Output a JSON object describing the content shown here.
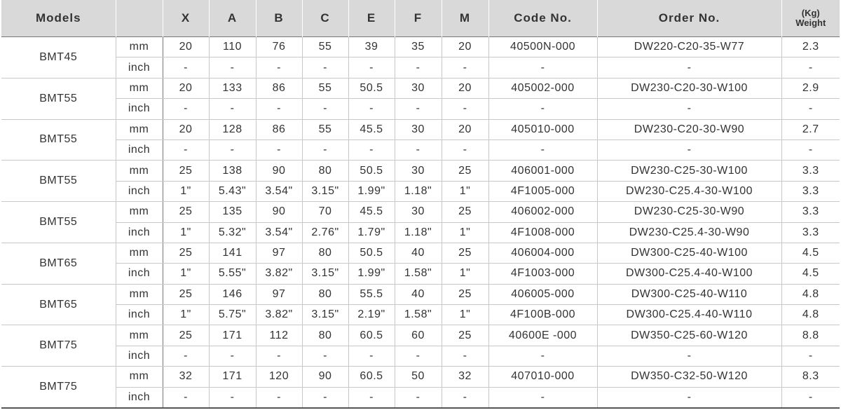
{
  "header": {
    "models": "Models",
    "dims": [
      "X",
      "A",
      "B",
      "C",
      "E",
      "F",
      "M"
    ],
    "code": "Code No.",
    "order": "Order No.",
    "weight_unit": "(Kg)",
    "weight": "Weight"
  },
  "groups": [
    {
      "model": "BMT45",
      "rows": [
        {
          "unit": "mm",
          "cells": [
            "20",
            "110",
            "76",
            "55",
            "39",
            "35",
            "20",
            "40500N-000",
            "DW220-C20-35-W77",
            "2.3"
          ]
        },
        {
          "unit": "inch",
          "cells": [
            "-",
            "-",
            "-",
            "-",
            "-",
            "-",
            "-",
            "-",
            "-",
            "-"
          ]
        }
      ]
    },
    {
      "model": "BMT55",
      "rows": [
        {
          "unit": "mm",
          "cells": [
            "20",
            "133",
            "86",
            "55",
            "50.5",
            "30",
            "20",
            "405002-000",
            "DW230-C20-30-W100",
            "2.9"
          ]
        },
        {
          "unit": "inch",
          "cells": [
            "-",
            "-",
            "-",
            "-",
            "-",
            "-",
            "-",
            "-",
            "-",
            "-"
          ]
        }
      ]
    },
    {
      "model": "BMT55",
      "rows": [
        {
          "unit": "mm",
          "cells": [
            "20",
            "128",
            "86",
            "55",
            "45.5",
            "30",
            "20",
            "405010-000",
            "DW230-C20-30-W90",
            "2.7"
          ]
        },
        {
          "unit": "inch",
          "cells": [
            "-",
            "-",
            "-",
            "-",
            "-",
            "-",
            "-",
            "-",
            "-",
            "-"
          ]
        }
      ]
    },
    {
      "model": "BMT55",
      "rows": [
        {
          "unit": "mm",
          "cells": [
            "25",
            "138",
            "90",
            "80",
            "50.5",
            "30",
            "25",
            "406001-000",
            "DW230-C25-30-W100",
            "3.3"
          ]
        },
        {
          "unit": "inch",
          "cells": [
            "1\"",
            "5.43\"",
            "3.54\"",
            "3.15\"",
            "1.99\"",
            "1.18\"",
            "1\"",
            "4F1005-000",
            "DW230-C25.4-30-W100",
            "3.3"
          ]
        }
      ]
    },
    {
      "model": "BMT55",
      "rows": [
        {
          "unit": "mm",
          "cells": [
            "25",
            "135",
            "90",
            "70",
            "45.5",
            "30",
            "25",
            "406002-000",
            "DW230-C25-30-W90",
            "3.3"
          ]
        },
        {
          "unit": "inch",
          "cells": [
            "1\"",
            "5.32\"",
            "3.54\"",
            "2.76\"",
            "1.79\"",
            "1.18\"",
            "1\"",
            "4F1008-000",
            "DW230-C25.4-30-W90",
            "3.3"
          ]
        }
      ]
    },
    {
      "model": "BMT65",
      "rows": [
        {
          "unit": "mm",
          "cells": [
            "25",
            "141",
            "97",
            "80",
            "50.5",
            "40",
            "25",
            "406004-000",
            "DW300-C25-40-W100",
            "4.5"
          ]
        },
        {
          "unit": "inch",
          "cells": [
            "1\"",
            "5.55\"",
            "3.82\"",
            "3.15\"",
            "1.99\"",
            "1.58\"",
            "1\"",
            "4F1003-000",
            "DW300-C25.4-40-W100",
            "4.5"
          ]
        }
      ]
    },
    {
      "model": "BMT65",
      "rows": [
        {
          "unit": "mm",
          "cells": [
            "25",
            "146",
            "97",
            "80",
            "55.5",
            "40",
            "25",
            "406005-000",
            "DW300-C25-40-W110",
            "4.8"
          ]
        },
        {
          "unit": "inch",
          "cells": [
            "1\"",
            "5.75\"",
            "3.82\"",
            "3.15\"",
            "2.19\"",
            "1.58\"",
            "1\"",
            "4F100B-000",
            "DW300-C25.4-40-W110",
            "4.8"
          ]
        }
      ]
    },
    {
      "model": "BMT75",
      "rows": [
        {
          "unit": "mm",
          "cells": [
            "25",
            "171",
            "112",
            "80",
            "60.5",
            "60",
            "25",
            "40600E -000",
            "DW350-C25-60-W120",
            "8.8"
          ]
        },
        {
          "unit": "inch",
          "cells": [
            "-",
            "-",
            "-",
            "-",
            "-",
            "-",
            "-",
            "-",
            "-",
            "-"
          ]
        }
      ]
    },
    {
      "model": "BMT75",
      "rows": [
        {
          "unit": "mm",
          "cells": [
            "32",
            "171",
            "120",
            "90",
            "60.5",
            "50",
            "32",
            "407010-000",
            "DW350-C32-50-W120",
            "8.3"
          ]
        },
        {
          "unit": "inch",
          "cells": [
            "-",
            "-",
            "-",
            "-",
            "-",
            "-",
            "-",
            "-",
            "-",
            "-"
          ]
        }
      ]
    }
  ]
}
